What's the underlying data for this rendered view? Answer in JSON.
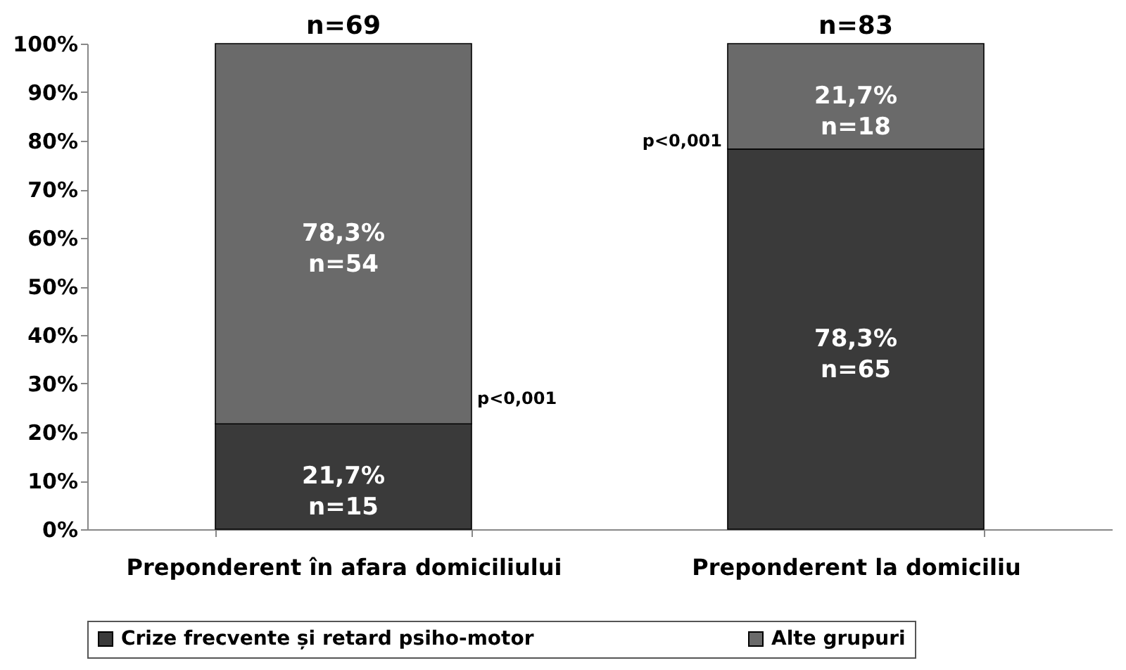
{
  "chart_data": {
    "type": "bar",
    "stacked": true,
    "categories": [
      "Preponderent în afara domiciliului",
      "Preponderent la domiciliu"
    ],
    "series": [
      {
        "name": "Crize frecvente și retard psiho-motor",
        "color": "#3a3a3a",
        "values": [
          21.7,
          78.3
        ],
        "value_labels": [
          "21,7%\nn=15",
          "78,3%\nn=65"
        ]
      },
      {
        "name": "Alte grupuri",
        "color": "#6a6a6a",
        "values": [
          78.3,
          21.7
        ],
        "value_labels": [
          "78,3%\nn=54",
          "21,7%\nn=18"
        ]
      }
    ],
    "annotations": [
      {
        "text": "n=69",
        "x": "Preponderent în afara domiciliului",
        "y": 100
      },
      {
        "text": "n=83",
        "x": "Preponderent la domiciliu",
        "y": 100
      },
      "p<0,001",
      "p<0,001"
    ],
    "ylim": [
      0,
      100
    ],
    "yticks": [
      {
        "value": 0,
        "label": "0%"
      },
      {
        "value": 10,
        "label": "10%"
      },
      {
        "value": 20,
        "label": "20%"
      },
      {
        "value": 30,
        "label": "30%"
      },
      {
        "value": 40,
        "label": "40%"
      },
      {
        "value": 50,
        "label": "50%"
      },
      {
        "value": 60,
        "label": "60%"
      },
      {
        "value": 70,
        "label": "70%"
      },
      {
        "value": 80,
        "label": "80%"
      },
      {
        "value": 90,
        "label": "90%"
      },
      {
        "value": 100,
        "label": "100%"
      }
    ],
    "grid": false,
    "legend": "bottom"
  }
}
